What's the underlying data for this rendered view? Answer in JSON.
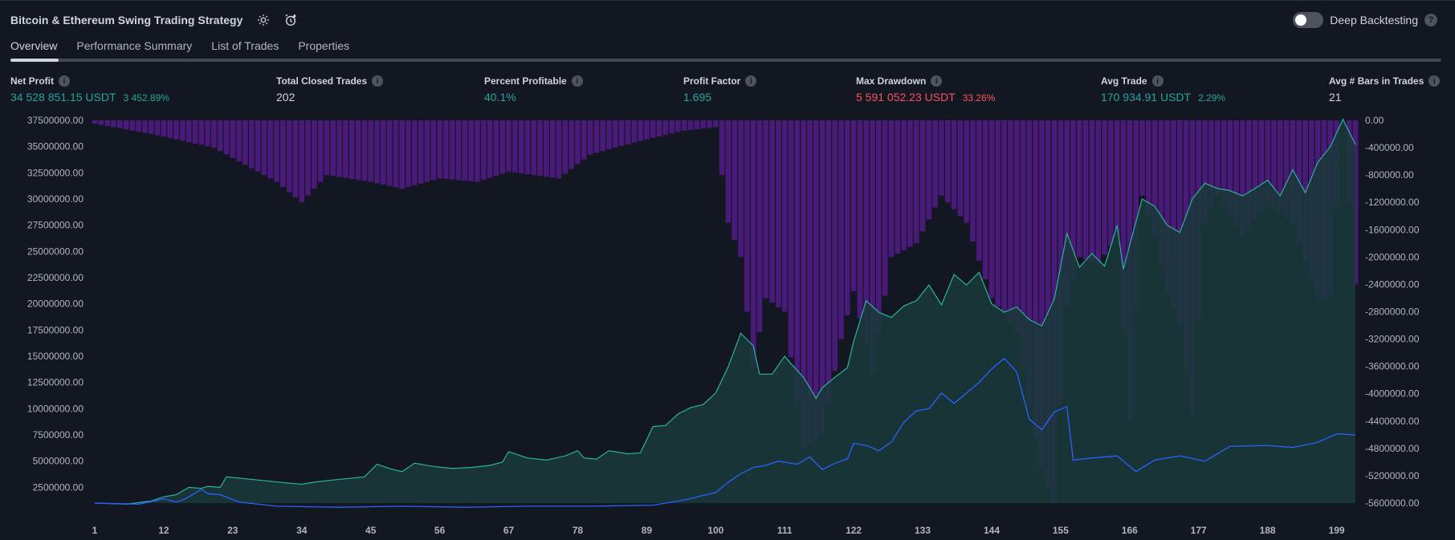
{
  "header": {
    "title": "Bitcoin & Ethereum Swing Trading Strategy",
    "settings_icon": "gear-icon",
    "alert_icon": "alarm-clock-plus-icon",
    "deep_backtesting": {
      "label": "Deep Backtesting",
      "enabled": false,
      "help": "?"
    }
  },
  "tabs": [
    {
      "label": "Overview",
      "active": true
    },
    {
      "label": "Performance Summary",
      "active": false
    },
    {
      "label": "List of Trades",
      "active": false
    },
    {
      "label": "Properties",
      "active": false
    }
  ],
  "stats": {
    "net_profit": {
      "label": "Net Profit",
      "value": "34 528 851.15 USDT",
      "pct": "3 452.89%"
    },
    "total_closed_trades": {
      "label": "Total Closed Trades",
      "value": "202"
    },
    "percent_profitable": {
      "label": "Percent Profitable",
      "value": "40.1%"
    },
    "profit_factor": {
      "label": "Profit Factor",
      "value": "1.695"
    },
    "max_drawdown": {
      "label": "Max Drawdown",
      "value": "5 591 052.23 USDT",
      "pct": "33.26%"
    },
    "avg_trade": {
      "label": "Avg Trade",
      "value": "170 934.91 USDT",
      "pct": "2.29%"
    },
    "avg_bars": {
      "label": "Avg # Bars in Trades",
      "value": "21"
    },
    "info_glyph": "i"
  },
  "colors": {
    "background": "#131722",
    "equity_line": "#2bb39a",
    "equity_fill": "#1a3a3a",
    "buy_hold_line": "#2962ff",
    "drawdown_bars": "#4a1a7a",
    "positive": "#26a69a",
    "negative": "#f7525f"
  },
  "chart_data": {
    "type": "area",
    "x_ticks": [
      "1",
      "12",
      "23",
      "34",
      "45",
      "56",
      "67",
      "78",
      "89",
      "100",
      "111",
      "122",
      "133",
      "144",
      "155",
      "166",
      "177",
      "188",
      "199"
    ],
    "x_range": [
      1,
      202
    ],
    "left_axis": {
      "ticks": [
        "37500000.00",
        "35000000.00",
        "32500000.00",
        "30000000.00",
        "27500000.00",
        "25000000.00",
        "22500000.00",
        "20000000.00",
        "17500000.00",
        "15000000.00",
        "12500000.00",
        "10000000.00",
        "7500000.00",
        "5000000.00",
        "2500000.00"
      ],
      "range": [
        1000000,
        37500000
      ]
    },
    "right_axis": {
      "ticks": [
        "0.00",
        "-400000.00",
        "-800000.00",
        "-1200000.00",
        "-1600000.00",
        "-2000000.00",
        "-2400000.00",
        "-2800000.00",
        "-3200000.00",
        "-3600000.00",
        "-4000000.00",
        "-4400000.00",
        "-4800000.00",
        "-5200000.00",
        "-5600000.00"
      ],
      "range": [
        -5600000,
        0
      ]
    },
    "series": [
      {
        "role": "equity",
        "points": [
          [
            1,
            1000000
          ],
          [
            6,
            900000
          ],
          [
            10,
            1200000
          ],
          [
            12,
            1600000
          ],
          [
            14,
            1800000
          ],
          [
            16,
            2500000
          ],
          [
            18,
            2400000
          ],
          [
            19,
            2600000
          ],
          [
            21,
            2500000
          ],
          [
            22,
            3500000
          ],
          [
            27,
            3200000
          ],
          [
            32,
            2900000
          ],
          [
            34,
            2800000
          ],
          [
            36,
            3000000
          ],
          [
            39,
            3200000
          ],
          [
            44,
            3500000
          ],
          [
            46,
            4700000
          ],
          [
            48,
            4300000
          ],
          [
            50,
            4000000
          ],
          [
            52,
            4800000
          ],
          [
            55,
            4500000
          ],
          [
            58,
            4300000
          ],
          [
            61,
            4400000
          ],
          [
            64,
            4600000
          ],
          [
            66,
            4900000
          ],
          [
            67,
            5900000
          ],
          [
            70,
            5300000
          ],
          [
            73,
            5100000
          ],
          [
            76,
            5500000
          ],
          [
            78,
            6000000
          ],
          [
            79,
            5300000
          ],
          [
            81,
            5200000
          ],
          [
            83,
            6000000
          ],
          [
            86,
            5700000
          ],
          [
            88,
            5800000
          ],
          [
            90,
            8300000
          ],
          [
            92,
            8400000
          ],
          [
            94,
            9500000
          ],
          [
            96,
            10100000
          ],
          [
            98,
            10400000
          ],
          [
            100,
            11500000
          ],
          [
            102,
            14000000
          ],
          [
            104,
            17200000
          ],
          [
            106,
            16000000
          ],
          [
            107,
            13300000
          ],
          [
            109,
            13300000
          ],
          [
            111,
            15000000
          ],
          [
            112,
            14300000
          ],
          [
            114,
            13000000
          ],
          [
            116,
            11000000
          ],
          [
            117,
            12000000
          ],
          [
            119,
            13000000
          ],
          [
            121,
            13900000
          ],
          [
            122,
            16400000
          ],
          [
            124,
            20300000
          ],
          [
            126,
            19200000
          ],
          [
            128,
            18700000
          ],
          [
            130,
            19800000
          ],
          [
            132,
            20300000
          ],
          [
            134,
            21800000
          ],
          [
            136,
            19900000
          ],
          [
            138,
            22800000
          ],
          [
            140,
            21800000
          ],
          [
            142,
            23000000
          ],
          [
            144,
            20000000
          ],
          [
            146,
            19200000
          ],
          [
            148,
            19700000
          ],
          [
            150,
            18500000
          ],
          [
            152,
            17900000
          ],
          [
            154,
            20500000
          ],
          [
            156,
            26700000
          ],
          [
            158,
            23500000
          ],
          [
            160,
            24800000
          ],
          [
            162,
            23600000
          ],
          [
            163,
            25500000
          ],
          [
            164,
            27500000
          ],
          [
            165,
            23300000
          ],
          [
            166,
            25600000
          ],
          [
            168,
            30000000
          ],
          [
            170,
            29300000
          ],
          [
            172,
            27500000
          ],
          [
            174,
            26800000
          ],
          [
            176,
            30000000
          ],
          [
            178,
            31500000
          ],
          [
            180,
            31000000
          ],
          [
            182,
            30800000
          ],
          [
            184,
            30300000
          ],
          [
            186,
            31000000
          ],
          [
            188,
            31800000
          ],
          [
            190,
            30300000
          ],
          [
            192,
            32800000
          ],
          [
            194,
            30600000
          ],
          [
            196,
            33500000
          ],
          [
            198,
            35000000
          ],
          [
            200,
            37600000
          ],
          [
            202,
            35200000
          ]
        ]
      },
      {
        "role": "buy_and_hold",
        "points": [
          [
            1,
            1000000
          ],
          [
            8,
            900000
          ],
          [
            12,
            1400000
          ],
          [
            14,
            1100000
          ],
          [
            15,
            1300000
          ],
          [
            16,
            1600000
          ],
          [
            18,
            2300000
          ],
          [
            19,
            1900000
          ],
          [
            21,
            1800000
          ],
          [
            24,
            1100000
          ],
          [
            30,
            700000
          ],
          [
            40,
            600000
          ],
          [
            50,
            700000
          ],
          [
            60,
            600000
          ],
          [
            70,
            700000
          ],
          [
            80,
            700000
          ],
          [
            90,
            800000
          ],
          [
            95,
            1300000
          ],
          [
            100,
            2000000
          ],
          [
            102,
            3000000
          ],
          [
            104,
            3800000
          ],
          [
            106,
            4400000
          ],
          [
            108,
            4600000
          ],
          [
            110,
            5000000
          ],
          [
            113,
            4700000
          ],
          [
            115,
            5400000
          ],
          [
            117,
            4200000
          ],
          [
            119,
            4800000
          ],
          [
            121,
            5200000
          ],
          [
            122,
            6700000
          ],
          [
            124,
            6500000
          ],
          [
            126,
            6000000
          ],
          [
            128,
            6800000
          ],
          [
            130,
            8700000
          ],
          [
            132,
            9800000
          ],
          [
            134,
            10000000
          ],
          [
            136,
            11500000
          ],
          [
            138,
            10500000
          ],
          [
            140,
            11500000
          ],
          [
            142,
            12500000
          ],
          [
            144,
            13800000
          ],
          [
            146,
            14800000
          ],
          [
            148,
            13500000
          ],
          [
            150,
            9000000
          ],
          [
            152,
            8000000
          ],
          [
            154,
            9700000
          ],
          [
            156,
            10200000
          ],
          [
            157,
            5100000
          ],
          [
            160,
            5300000
          ],
          [
            164,
            5500000
          ],
          [
            167,
            4000000
          ],
          [
            170,
            5100000
          ],
          [
            174,
            5500000
          ],
          [
            178,
            5000000
          ],
          [
            182,
            6400000
          ],
          [
            188,
            6500000
          ],
          [
            192,
            6300000
          ],
          [
            196,
            6800000
          ],
          [
            199,
            7600000
          ],
          [
            202,
            7500000
          ]
        ]
      },
      {
        "role": "drawdown",
        "points": [
          [
            1,
            -50000
          ],
          [
            10,
            -200000
          ],
          [
            20,
            -400000
          ],
          [
            30,
            -900000
          ],
          [
            34,
            -1200000
          ],
          [
            38,
            -800000
          ],
          [
            45,
            -900000
          ],
          [
            50,
            -1000000
          ],
          [
            56,
            -850000
          ],
          [
            62,
            -900000
          ],
          [
            67,
            -750000
          ],
          [
            75,
            -850000
          ],
          [
            80,
            -500000
          ],
          [
            88,
            -300000
          ],
          [
            95,
            -150000
          ],
          [
            100,
            -100000
          ],
          [
            102,
            -1500000
          ],
          [
            104,
            -2000000
          ],
          [
            106,
            -3600000
          ],
          [
            108,
            -2600000
          ],
          [
            111,
            -2800000
          ],
          [
            114,
            -4800000
          ],
          [
            117,
            -4600000
          ],
          [
            120,
            -3200000
          ],
          [
            122,
            -2500000
          ],
          [
            125,
            -3700000
          ],
          [
            128,
            -2000000
          ],
          [
            132,
            -1800000
          ],
          [
            136,
            -1100000
          ],
          [
            140,
            -1500000
          ],
          [
            144,
            -2600000
          ],
          [
            148,
            -3100000
          ],
          [
            150,
            -4200000
          ],
          [
            152,
            -5100000
          ],
          [
            154,
            -5600000
          ],
          [
            156,
            -2700000
          ],
          [
            158,
            -2000000
          ],
          [
            161,
            -2100000
          ],
          [
            164,
            -1700000
          ],
          [
            166,
            -4400000
          ],
          [
            168,
            -1100000
          ],
          [
            170,
            -1700000
          ],
          [
            172,
            -2500000
          ],
          [
            174,
            -3000000
          ],
          [
            176,
            -4300000
          ],
          [
            178,
            -1500000
          ],
          [
            180,
            -1100000
          ],
          [
            184,
            -1700000
          ],
          [
            188,
            -1200000
          ],
          [
            192,
            -1500000
          ],
          [
            196,
            -2600000
          ],
          [
            198,
            -2600000
          ],
          [
            200,
            0
          ],
          [
            202,
            -2400000
          ]
        ]
      }
    ]
  }
}
